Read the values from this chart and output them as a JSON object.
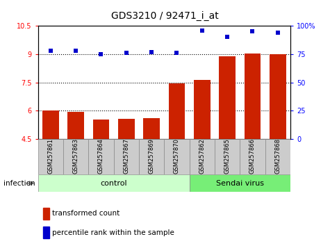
{
  "title": "GDS3210 / 92471_i_at",
  "samples": [
    "GSM257861",
    "GSM257863",
    "GSM257864",
    "GSM257867",
    "GSM257869",
    "GSM257870",
    "GSM257862",
    "GSM257865",
    "GSM257866",
    "GSM257868"
  ],
  "transformed_count": [
    6.0,
    5.95,
    5.55,
    5.58,
    5.6,
    7.45,
    7.65,
    8.9,
    9.05,
    9.0
  ],
  "percentile_rank": [
    78,
    78,
    75,
    76,
    77,
    76,
    96,
    90,
    95,
    94
  ],
  "n_control": 6,
  "n_virus": 4,
  "ylim_left": [
    4.5,
    10.5
  ],
  "ylim_right": [
    0,
    100
  ],
  "yticks_left": [
    4.5,
    6.0,
    7.5,
    9.0,
    10.5
  ],
  "ytick_labels_left": [
    "4.5",
    "6",
    "7.5",
    "9",
    "10.5"
  ],
  "yticks_right": [
    0,
    25,
    50,
    75,
    100
  ],
  "ytick_labels_right": [
    "0",
    "25",
    "50",
    "75",
    "100%"
  ],
  "hlines": [
    6.0,
    7.5,
    9.0
  ],
  "bar_color": "#cc2200",
  "dot_color": "#0000cc",
  "control_bg": "#ccffcc",
  "virus_bg": "#77ee77",
  "sample_bg": "#cccccc",
  "legend_red_label": "transformed count",
  "legend_blue_label": "percentile rank within the sample",
  "infection_label": "infection",
  "control_label": "control",
  "virus_label": "Sendai virus",
  "title_fontsize": 10,
  "tick_fontsize": 7,
  "label_fontsize": 7.5,
  "group_fontsize": 8,
  "sample_fontsize": 6
}
